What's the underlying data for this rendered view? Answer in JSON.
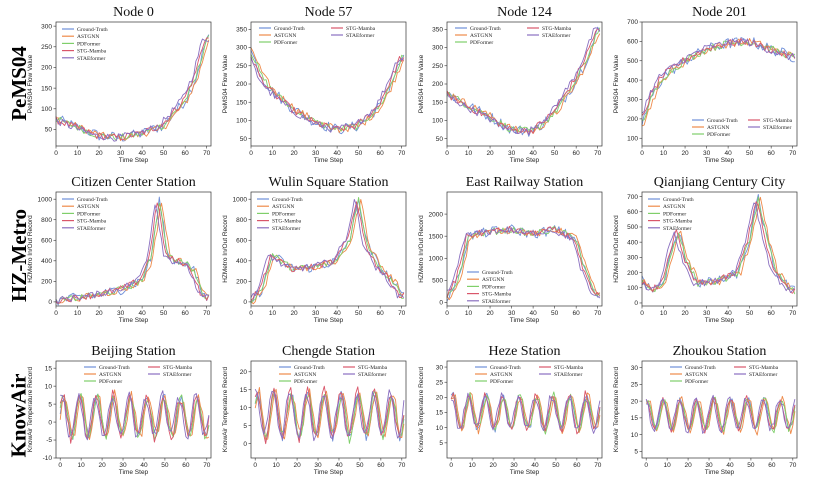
{
  "rows": [
    {
      "label": "PeMS04",
      "ylabel": "PeMS04 Flow Value"
    },
    {
      "label": "HZ-Metro",
      "ylabel": "HZMetro In/Out Record"
    },
    {
      "label": "KnowAir",
      "ylabel": "KnowAir Temperature Record"
    }
  ],
  "colors": {
    "Ground-Truth": "#6f8fd8",
    "ASTGNN": "#ee8a4a",
    "PDFormer": "#7fcf6a",
    "STG-Mamba": "#d9566a",
    "STAEformer": "#8a6fc0"
  },
  "chart_data": [
    {
      "type": "line",
      "row": 0,
      "col": 0,
      "title": "Node 0",
      "xlabel": "Time Step",
      "ylabel": "PeMS04 Flow Value",
      "xlim": [
        0,
        72
      ],
      "ylim": [
        10,
        310
      ],
      "xticks": [
        0,
        10,
        20,
        30,
        40,
        50,
        60,
        70
      ],
      "yticks": [
        50,
        100,
        150,
        200,
        250,
        300
      ],
      "legend": "top-left",
      "legend_entries": [
        "Ground-Truth",
        "ASTGNN",
        "PDFormer",
        "STG-Mamba",
        "STAEformer"
      ],
      "anchors": [
        [
          0,
          75
        ],
        [
          10,
          55
        ],
        [
          20,
          35
        ],
        [
          30,
          30
        ],
        [
          40,
          40
        ],
        [
          50,
          60
        ],
        [
          60,
          120
        ],
        [
          65,
          175
        ],
        [
          70,
          270
        ]
      ]
    },
    {
      "type": "line",
      "row": 0,
      "col": 1,
      "title": "Node 57",
      "xlabel": "Time Step",
      "ylabel": "PeMS04 Flow Value",
      "xlim": [
        0,
        72
      ],
      "ylim": [
        30,
        370
      ],
      "xticks": [
        0,
        10,
        20,
        30,
        40,
        50,
        60,
        70
      ],
      "yticks": [
        50,
        100,
        150,
        200,
        250,
        300,
        350
      ],
      "legend": "top",
      "legend_entries": [
        "Ground-Truth",
        "ASTGNN",
        "PDFormer",
        "STG-Mamba",
        "STAEformer"
      ],
      "anchors": [
        [
          0,
          290
        ],
        [
          5,
          220
        ],
        [
          10,
          180
        ],
        [
          20,
          130
        ],
        [
          30,
          95
        ],
        [
          40,
          75
        ],
        [
          50,
          85
        ],
        [
          60,
          140
        ],
        [
          65,
          200
        ],
        [
          70,
          270
        ]
      ]
    },
    {
      "type": "line",
      "row": 0,
      "col": 2,
      "title": "Node 124",
      "xlabel": "Time Step",
      "ylabel": "PeMS04 Flow Value",
      "xlim": [
        0,
        72
      ],
      "ylim": [
        30,
        370
      ],
      "xticks": [
        0,
        10,
        20,
        30,
        40,
        50,
        60,
        70
      ],
      "yticks": [
        50,
        100,
        150,
        200,
        250,
        300,
        350
      ],
      "legend": "top",
      "legend_entries": [
        "Ground-Truth",
        "ASTGNN",
        "PDFormer",
        "STG-Mamba",
        "STAEformer"
      ],
      "anchors": [
        [
          0,
          175
        ],
        [
          10,
          140
        ],
        [
          20,
          110
        ],
        [
          30,
          75
        ],
        [
          40,
          70
        ],
        [
          50,
          120
        ],
        [
          60,
          210
        ],
        [
          65,
          270
        ],
        [
          70,
          345
        ]
      ]
    },
    {
      "type": "line",
      "row": 0,
      "col": 3,
      "title": "Node 201",
      "xlabel": "Time Step",
      "ylabel": "PeMS04 Flow Value",
      "xlim": [
        0,
        72
      ],
      "ylim": [
        60,
        700
      ],
      "xticks": [
        0,
        10,
        20,
        30,
        40,
        50,
        60,
        70
      ],
      "yticks": [
        100,
        200,
        300,
        400,
        500,
        600,
        700
      ],
      "legend": "bottom",
      "legend_entries": [
        "Ground-Truth",
        "ASTGNN",
        "PDFormer",
        "STG-Mamba",
        "STAEformer"
      ],
      "anchors": [
        [
          0,
          180
        ],
        [
          5,
          320
        ],
        [
          10,
          420
        ],
        [
          20,
          500
        ],
        [
          30,
          560
        ],
        [
          40,
          590
        ],
        [
          50,
          600
        ],
        [
          60,
          560
        ],
        [
          70,
          520
        ]
      ]
    },
    {
      "type": "line",
      "row": 1,
      "col": 0,
      "title": "Citizen Center Station",
      "xlabel": "Time Step",
      "ylabel": "HZMetro In/Out Record",
      "xlim": [
        0,
        72
      ],
      "ylim": [
        -40,
        1070
      ],
      "xticks": [
        0,
        10,
        20,
        30,
        40,
        50,
        60,
        70
      ],
      "yticks": [
        0,
        200,
        400,
        600,
        800,
        1000
      ],
      "legend": "top-left",
      "legend_entries": [
        "Ground-Truth",
        "ASTGNN",
        "PDFormer",
        "STG-Mamba",
        "STAEformer"
      ],
      "anchors": [
        [
          0,
          10
        ],
        [
          10,
          40
        ],
        [
          20,
          70
        ],
        [
          30,
          120
        ],
        [
          35,
          160
        ],
        [
          40,
          220
        ],
        [
          44,
          420
        ],
        [
          48,
          990
        ],
        [
          52,
          450
        ],
        [
          56,
          400
        ],
        [
          60,
          380
        ],
        [
          64,
          300
        ],
        [
          68,
          90
        ],
        [
          70,
          40
        ]
      ]
    },
    {
      "type": "line",
      "row": 1,
      "col": 1,
      "title": "Wulin Square Station",
      "xlabel": "Time Step",
      "ylabel": "HZMetro In/Out Record",
      "xlim": [
        0,
        72
      ],
      "ylim": [
        -40,
        1070
      ],
      "xticks": [
        0,
        10,
        20,
        30,
        40,
        50,
        60,
        70
      ],
      "yticks": [
        0,
        200,
        400,
        600,
        800,
        1000
      ],
      "legend": "top-left",
      "legend_entries": [
        "Ground-Truth",
        "ASTGNN",
        "PDFormer",
        "STG-Mamba",
        "STAEformer"
      ],
      "anchors": [
        [
          0,
          10
        ],
        [
          5,
          120
        ],
        [
          10,
          460
        ],
        [
          15,
          380
        ],
        [
          20,
          320
        ],
        [
          30,
          340
        ],
        [
          40,
          400
        ],
        [
          46,
          620
        ],
        [
          50,
          1000
        ],
        [
          54,
          560
        ],
        [
          60,
          330
        ],
        [
          66,
          200
        ],
        [
          70,
          60
        ]
      ]
    },
    {
      "type": "line",
      "row": 1,
      "col": 2,
      "title": "East Railway Station",
      "xlabel": "Time Step",
      "ylabel": "HZMetro In/Out Record",
      "xlim": [
        0,
        72
      ],
      "ylim": [
        -80,
        2500
      ],
      "xticks": [
        0,
        10,
        20,
        30,
        40,
        50,
        60,
        70
      ],
      "yticks": [
        0,
        500,
        1000,
        1500,
        2000
      ],
      "legend": "bottom-left",
      "legend_entries": [
        "Ground-Truth",
        "ASTGNN",
        "PDFormer",
        "STG-Mamba",
        "STAEformer"
      ],
      "anchors": [
        [
          0,
          80
        ],
        [
          5,
          500
        ],
        [
          10,
          1500
        ],
        [
          20,
          1600
        ],
        [
          30,
          1650
        ],
        [
          40,
          1550
        ],
        [
          50,
          1650
        ],
        [
          60,
          1450
        ],
        [
          63,
          900
        ],
        [
          68,
          250
        ],
        [
          70,
          150
        ]
      ]
    },
    {
      "type": "line",
      "row": 1,
      "col": 3,
      "title": "Qianjiang Century City",
      "xlabel": "Time Step",
      "ylabel": "HZMetro In/Out Record",
      "xlim": [
        0,
        72
      ],
      "ylim": [
        -20,
        730
      ],
      "xticks": [
        0,
        10,
        20,
        30,
        40,
        50,
        60,
        70
      ],
      "yticks": [
        0,
        100,
        200,
        300,
        400,
        500,
        600,
        700
      ],
      "legend": "top-left",
      "legend_entries": [
        "Ground-Truth",
        "ASTGNN",
        "PDFormer",
        "STG-Mamba",
        "STAEformer"
      ],
      "anchors": [
        [
          0,
          150
        ],
        [
          5,
          80
        ],
        [
          10,
          130
        ],
        [
          14,
          350
        ],
        [
          17,
          470
        ],
        [
          20,
          300
        ],
        [
          26,
          130
        ],
        [
          35,
          140
        ],
        [
          45,
          200
        ],
        [
          50,
          420
        ],
        [
          54,
          690
        ],
        [
          58,
          420
        ],
        [
          62,
          210
        ],
        [
          66,
          140
        ],
        [
          70,
          80
        ]
      ]
    },
    {
      "type": "line",
      "row": 2,
      "col": 0,
      "title": "Beijing Station",
      "xlabel": "Time Step",
      "ylabel": "KnowAir Temperature Record",
      "xlim": [
        -2,
        72
      ],
      "ylim": [
        -10,
        17
      ],
      "xticks": [
        0,
        10,
        20,
        30,
        40,
        50,
        60,
        70
      ],
      "yticks": [
        -10,
        -5,
        0,
        5,
        10,
        15
      ],
      "legend": "top",
      "legend_entries": [
        "Ground-Truth",
        "ASTGNN",
        "PDFormer",
        "STG-Mamba",
        "STAEformer"
      ],
      "wave": {
        "mean": 1.5,
        "amp": 5.5,
        "period": 8,
        "phase": 0.3
      }
    },
    {
      "type": "line",
      "row": 2,
      "col": 1,
      "title": "Chengde Station",
      "xlabel": "Time Step",
      "ylabel": "KnowAir Temperature Record",
      "xlim": [
        -2,
        72
      ],
      "ylim": [
        -4,
        23
      ],
      "xticks": [
        0,
        10,
        20,
        30,
        40,
        50,
        60,
        70
      ],
      "yticks": [
        0,
        5,
        10,
        15,
        20
      ],
      "legend": "top",
      "legend_entries": [
        "Ground-Truth",
        "ASTGNN",
        "PDFormer",
        "STG-Mamba",
        "STAEformer"
      ],
      "wave": {
        "mean": 8,
        "amp": 6,
        "period": 8,
        "phase": 0.6
      }
    },
    {
      "type": "line",
      "row": 2,
      "col": 2,
      "title": "Heze Station",
      "xlabel": "Time Step",
      "ylabel": "KnowAir Temperature Record",
      "xlim": [
        -2,
        72
      ],
      "ylim": [
        0,
        32
      ],
      "xticks": [
        0,
        10,
        20,
        30,
        40,
        50,
        60,
        70
      ],
      "yticks": [
        5,
        10,
        15,
        20,
        25,
        30
      ],
      "legend": "top",
      "legend_entries": [
        "Ground-Truth",
        "ASTGNN",
        "PDFormer",
        "STG-Mamba",
        "STAEformer"
      ],
      "wave": {
        "mean": 15,
        "amp": 5.5,
        "period": 8,
        "phase": 0.9
      }
    },
    {
      "type": "line",
      "row": 2,
      "col": 3,
      "title": "Zhoukou Station",
      "xlabel": "Time Step",
      "ylabel": "KnowAir Temperature Record",
      "xlim": [
        -2,
        72
      ],
      "ylim": [
        3,
        32
      ],
      "xticks": [
        0,
        10,
        20,
        30,
        40,
        50,
        60,
        70
      ],
      "yticks": [
        5,
        10,
        15,
        20,
        25,
        30
      ],
      "legend": "top",
      "legend_entries": [
        "Ground-Truth",
        "ASTGNN",
        "PDFormer",
        "STG-Mamba",
        "STAEformer"
      ],
      "wave": {
        "mean": 16,
        "amp": 4.5,
        "period": 8,
        "phase": 1.2
      }
    }
  ]
}
